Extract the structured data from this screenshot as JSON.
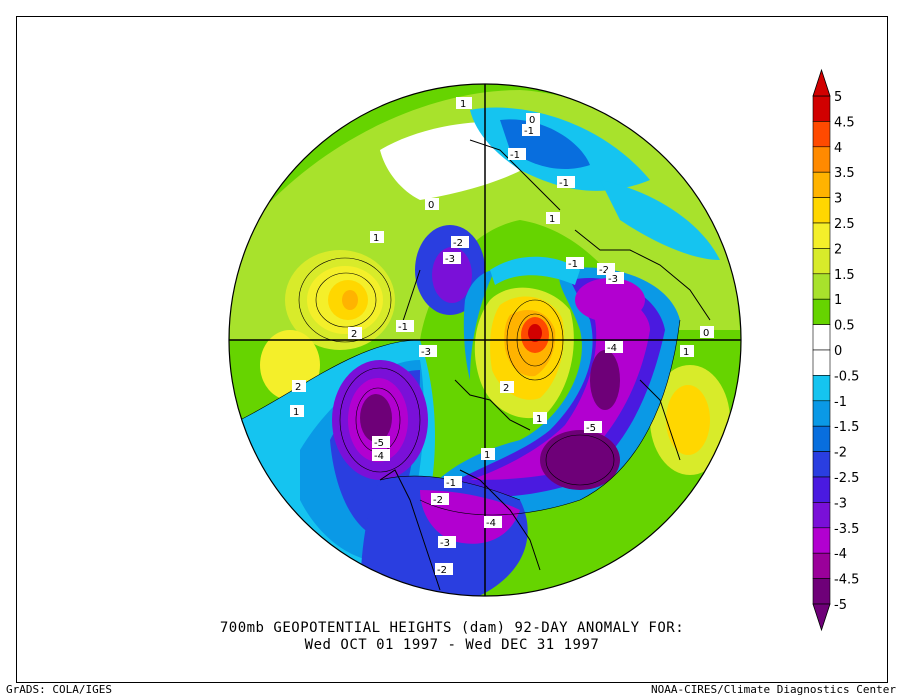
{
  "title_line1": "700mb GEOPOTENTIAL HEIGHTS (dam)   92-DAY ANOMALY FOR:",
  "title_line2": "Wed OCT 01 1997 - Wed DEC 31 1997",
  "footer_left": "GrADS: COLA/IGES",
  "footer_right": "NOAA-CIRES/Climate Diagnostics Center",
  "colorbar": {
    "levels": [
      "5",
      "4.5",
      "4",
      "3.5",
      "3",
      "2.5",
      "2",
      "1.5",
      "1",
      "0.5",
      "0",
      "-0.5",
      "-1",
      "-1.5",
      "-2",
      "-2.5",
      "-3",
      "-3.5",
      "-4",
      "-4.5",
      "-5"
    ],
    "colors": [
      "#d10000",
      "#ff4a00",
      "#ff8a00",
      "#ffb300",
      "#ffd700",
      "#f4ef2a",
      "#d8eb2a",
      "#a8e22c",
      "#66d400",
      "#ffffff",
      "#ffffff",
      "#15c4f0",
      "#0a99e6",
      "#086ede",
      "#2a3ee0",
      "#4a1ae0",
      "#7a10d8",
      "#b200d0",
      "#9a009a",
      "#6e0078"
    ]
  },
  "contour_labels": [
    {
      "text": "1"
    },
    {
      "text": "-1"
    },
    {
      "text": "-1"
    },
    {
      "text": "-1"
    },
    {
      "text": "0"
    },
    {
      "text": "1"
    },
    {
      "text": "-2"
    },
    {
      "text": "-3"
    },
    {
      "text": "1"
    },
    {
      "text": "2"
    },
    {
      "text": "-1"
    },
    {
      "text": "-3"
    },
    {
      "text": "-1"
    },
    {
      "text": "-2"
    },
    {
      "text": "-3"
    },
    {
      "text": "-4"
    },
    {
      "text": "0"
    },
    {
      "text": "1"
    },
    {
      "text": "2"
    },
    {
      "text": "1"
    },
    {
      "text": "2"
    },
    {
      "text": "1"
    },
    {
      "text": "-5"
    },
    {
      "text": "-4"
    },
    {
      "text": "-5"
    },
    {
      "text": "1"
    },
    {
      "text": "-1"
    },
    {
      "text": "-2"
    },
    {
      "text": "-4"
    },
    {
      "text": "-3"
    },
    {
      "text": "-2"
    },
    {
      "text": "0"
    }
  ]
}
